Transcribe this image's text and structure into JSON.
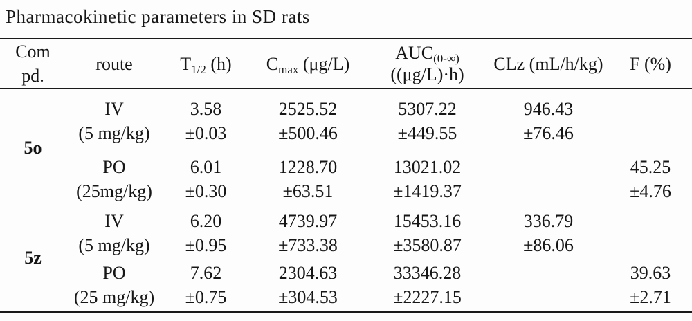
{
  "title": "Pharmacokinetic parameters in SD rats",
  "colors": {
    "background": "#fdfdfd",
    "text": "#161616",
    "rule": "#1a1a1a"
  },
  "table": {
    "headers": {
      "compound": {
        "line1": "Com",
        "line2": "pd."
      },
      "route": "route",
      "t_half": {
        "pre": "T",
        "sub": "1/2",
        "post": " (h)"
      },
      "cmax": {
        "pre": "C",
        "sub": "max",
        "post": " (μg/L)"
      },
      "auc": {
        "pre": "AUC",
        "sub": "(0-∞)",
        "line2": "((μg/L)·h)"
      },
      "clz": "CLz (mL/h/kg)",
      "f": "F (%)"
    },
    "groups": [
      {
        "compound": "5o",
        "rows": [
          {
            "route": "IV",
            "dose": "(5 mg/kg)",
            "t_half": "3.58",
            "t_half_sd": "±0.03",
            "cmax": "2525.52",
            "cmax_sd": "±500.46",
            "auc": "5307.22",
            "auc_sd": "±449.55",
            "clz": "946.43",
            "clz_sd": "±76.46",
            "f": "",
            "f_sd": ""
          },
          {
            "route": "PO",
            "dose": "(25mg/kg)",
            "t_half": "6.01",
            "t_half_sd": "±0.30",
            "cmax": "1228.70",
            "cmax_sd": "±63.51",
            "auc": "13021.02",
            "auc_sd": "±1419.37",
            "clz": "",
            "clz_sd": "",
            "f": "45.25",
            "f_sd": "±4.76"
          }
        ]
      },
      {
        "compound": "5z",
        "rows": [
          {
            "route": "IV",
            "dose": "(5 mg/kg)",
            "t_half": "6.20",
            "t_half_sd": "±0.95",
            "cmax": "4739.97",
            "cmax_sd": "±733.38",
            "auc": "15453.16",
            "auc_sd": "±3580.87",
            "clz": "336.79",
            "clz_sd": "±86.06",
            "f": "",
            "f_sd": ""
          },
          {
            "route": "PO",
            "dose": "(25 mg/kg)",
            "t_half": "7.62",
            "t_half_sd": "±0.75",
            "cmax": "2304.63",
            "cmax_sd": "±304.53",
            "auc": "33346.28",
            "auc_sd": "±2227.15",
            "clz": "",
            "clz_sd": "",
            "f": "39.63",
            "f_sd": "±2.71"
          }
        ]
      }
    ]
  }
}
